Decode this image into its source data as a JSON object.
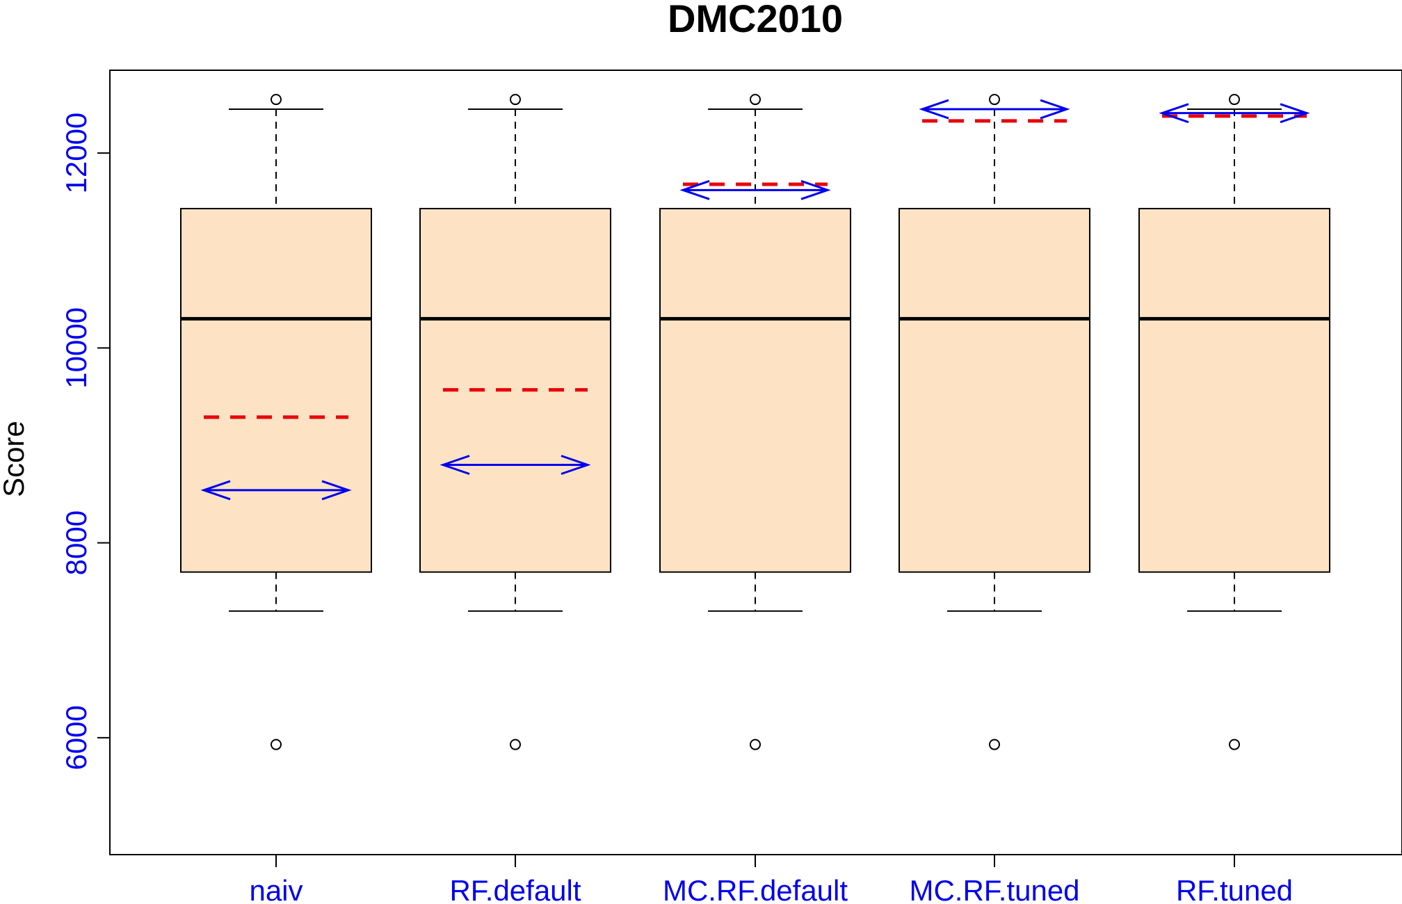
{
  "chart_data": {
    "type": "boxplot",
    "title": "DMC2010",
    "ylabel": "Score",
    "xlabel": "",
    "ylim": [
      4800,
      12850
    ],
    "yticks": [
      6000,
      8000,
      10000,
      12000
    ],
    "grid": false,
    "categories": [
      "naiv",
      "RF.default",
      "MC.RF.default",
      "MC.RF.tuned",
      "RF.tuned"
    ],
    "boxes": [
      {
        "name": "naiv",
        "whisker_low": 7300,
        "q1": 7700,
        "median": 10300,
        "q3": 11430,
        "whisker_high": 12450,
        "outliers": [
          12550,
          5930
        ]
      },
      {
        "name": "RF.default",
        "whisker_low": 7300,
        "q1": 7700,
        "median": 10300,
        "q3": 11430,
        "whisker_high": 12450,
        "outliers": [
          12550,
          5930
        ]
      },
      {
        "name": "MC.RF.default",
        "whisker_low": 7300,
        "q1": 7700,
        "median": 10300,
        "q3": 11430,
        "whisker_high": 12450,
        "outliers": [
          12550,
          5930
        ]
      },
      {
        "name": "MC.RF.tuned",
        "whisker_low": 7300,
        "q1": 7700,
        "median": 10300,
        "q3": 11430,
        "whisker_high": 12450,
        "outliers": [
          12550,
          5930
        ]
      },
      {
        "name": "RF.tuned",
        "whisker_low": 7300,
        "q1": 7700,
        "median": 10300,
        "q3": 11430,
        "whisker_high": 12450,
        "outliers": [
          12550,
          5930
        ]
      }
    ],
    "dashed_markers": [
      9290,
      9570,
      11680,
      12330,
      12380
    ],
    "arrow_markers": [
      8540,
      8800,
      11620,
      12450,
      12410
    ],
    "colors": {
      "box_fill": "#fde3c4",
      "outline": "#000000",
      "dashed_marker": "#e8000b",
      "arrow_marker": "#0000ee",
      "tick_labels": "#0000ee"
    }
  }
}
